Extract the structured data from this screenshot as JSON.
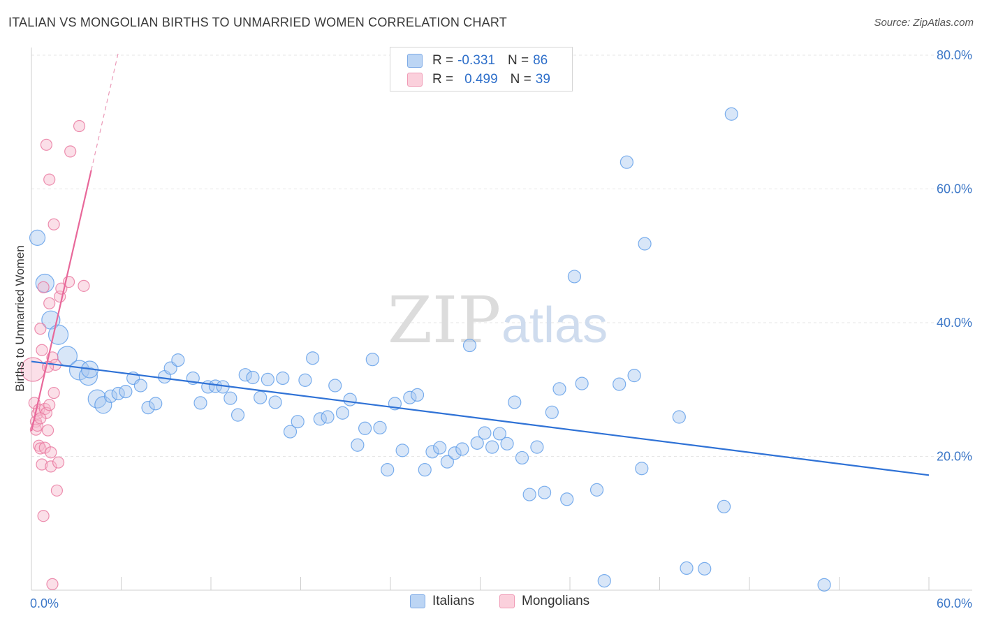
{
  "header": {
    "title": "ITALIAN VS MONGOLIAN BIRTHS TO UNMARRIED WOMEN CORRELATION CHART",
    "source": "Source: ZipAtlas.com"
  },
  "watermark": {
    "zip": "ZIP",
    "atlas": "atlas"
  },
  "legend": {
    "rows": [
      {
        "r_label": "R =",
        "r_value": "-0.331",
        "n_label": "N =",
        "n_value": "86",
        "color": "#a9c8f0"
      },
      {
        "r_label": "R =",
        "r_value": "0.499",
        "n_label": "N =",
        "n_value": "39",
        "color": "#f6b8cb"
      }
    ]
  },
  "bottom_legend": {
    "italians": "Italians",
    "mongolians": "Mongolians"
  },
  "chart_data": {
    "type": "scatter",
    "ylabel": "Births to Unmarried Women",
    "xlim": [
      0,
      60
    ],
    "ylim": [
      0,
      80
    ],
    "x_tick_labels": [
      {
        "value": 0,
        "label": "0.0%"
      },
      {
        "value": 60,
        "label": "60.0%"
      }
    ],
    "y_tick_labels": [
      {
        "value": 20,
        "label": "20.0%"
      },
      {
        "value": 40,
        "label": "40.0%"
      },
      {
        "value": 60,
        "label": "60.0%"
      },
      {
        "value": 80,
        "label": "80.0%"
      }
    ],
    "grid": true,
    "colors": {
      "italians": "#5b9be8",
      "italians_fill": "#a9c8f0",
      "mongolians": "#e8749c",
      "mongolians_fill": "#f6b8cb"
    },
    "series": [
      {
        "name": "Italians",
        "trend": {
          "x": [
            0,
            60
          ],
          "y": [
            34.2,
            17.2
          ]
        },
        "points": [
          [
            0.4,
            52.7
          ],
          [
            0.9,
            45.9
          ],
          [
            1.3,
            40.4
          ],
          [
            1.8,
            38.2
          ],
          [
            2.4,
            35.0
          ],
          [
            3.2,
            32.9
          ],
          [
            3.8,
            32.0
          ],
          [
            3.9,
            33.0
          ],
          [
            4.4,
            28.6
          ],
          [
            4.8,
            27.7
          ],
          [
            5.3,
            29.0
          ],
          [
            5.8,
            29.4
          ],
          [
            6.3,
            29.7
          ],
          [
            6.8,
            31.7
          ],
          [
            7.3,
            30.6
          ],
          [
            7.8,
            27.3
          ],
          [
            8.3,
            27.9
          ],
          [
            8.9,
            31.9
          ],
          [
            9.3,
            33.2
          ],
          [
            9.8,
            34.4
          ],
          [
            10.8,
            31.7
          ],
          [
            11.3,
            28.0
          ],
          [
            11.8,
            30.4
          ],
          [
            12.3,
            30.5
          ],
          [
            12.8,
            30.4
          ],
          [
            13.3,
            28.7
          ],
          [
            13.8,
            26.2
          ],
          [
            14.3,
            32.2
          ],
          [
            14.8,
            31.8
          ],
          [
            15.3,
            28.8
          ],
          [
            15.8,
            31.5
          ],
          [
            16.3,
            28.1
          ],
          [
            16.8,
            31.7
          ],
          [
            17.3,
            23.7
          ],
          [
            17.8,
            25.2
          ],
          [
            18.3,
            31.4
          ],
          [
            18.8,
            34.7
          ],
          [
            19.3,
            25.6
          ],
          [
            19.8,
            25.9
          ],
          [
            20.3,
            30.6
          ],
          [
            20.8,
            26.5
          ],
          [
            21.3,
            28.5
          ],
          [
            21.8,
            21.7
          ],
          [
            22.3,
            24.2
          ],
          [
            22.8,
            34.5
          ],
          [
            23.3,
            24.3
          ],
          [
            23.8,
            18.0
          ],
          [
            24.3,
            27.9
          ],
          [
            24.8,
            20.9
          ],
          [
            25.3,
            28.8
          ],
          [
            25.8,
            29.2
          ],
          [
            26.3,
            18.0
          ],
          [
            26.8,
            20.7
          ],
          [
            27.3,
            21.3
          ],
          [
            27.8,
            19.2
          ],
          [
            28.3,
            20.5
          ],
          [
            28.8,
            21.1
          ],
          [
            29.3,
            36.6
          ],
          [
            29.8,
            22.0
          ],
          [
            30.3,
            23.5
          ],
          [
            30.8,
            21.4
          ],
          [
            31.3,
            23.4
          ],
          [
            31.8,
            21.9
          ],
          [
            32.3,
            28.1
          ],
          [
            32.8,
            19.8
          ],
          [
            33.3,
            14.3
          ],
          [
            33.8,
            21.4
          ],
          [
            34.3,
            14.6
          ],
          [
            34.8,
            26.6
          ],
          [
            35.3,
            30.1
          ],
          [
            35.8,
            13.6
          ],
          [
            36.3,
            46.9
          ],
          [
            36.8,
            30.9
          ],
          [
            37.8,
            15.0
          ],
          [
            38.3,
            1.4
          ],
          [
            39.3,
            30.8
          ],
          [
            39.8,
            64.0
          ],
          [
            40.3,
            32.1
          ],
          [
            40.8,
            18.2
          ],
          [
            41.0,
            51.8
          ],
          [
            43.3,
            25.9
          ],
          [
            43.8,
            3.3
          ],
          [
            45.0,
            3.2
          ],
          [
            46.3,
            12.5
          ],
          [
            46.8,
            71.2
          ],
          [
            53.0,
            0.8
          ]
        ]
      },
      {
        "name": "Mongolians",
        "trend": {
          "x": [
            0,
            4
          ],
          "y": [
            23.8,
            62.8
          ]
        },
        "trend_extension": {
          "x": [
            4,
            5.8
          ],
          "y": [
            62.8,
            80.3
          ]
        },
        "points": [
          [
            0.1,
            33.0
          ],
          [
            0.2,
            28.0
          ],
          [
            0.3,
            25.2
          ],
          [
            0.3,
            24.0
          ],
          [
            0.4,
            26.4
          ],
          [
            0.5,
            27.0
          ],
          [
            0.5,
            21.6
          ],
          [
            0.6,
            21.2
          ],
          [
            0.6,
            39.1
          ],
          [
            0.7,
            18.8
          ],
          [
            0.7,
            35.9
          ],
          [
            0.8,
            45.3
          ],
          [
            0.8,
            11.1
          ],
          [
            0.9,
            21.3
          ],
          [
            0.9,
            27.1
          ],
          [
            1.0,
            66.6
          ],
          [
            1.0,
            26.5
          ],
          [
            1.1,
            23.9
          ],
          [
            1.2,
            61.4
          ],
          [
            1.2,
            42.9
          ],
          [
            1.3,
            20.6
          ],
          [
            1.3,
            18.5
          ],
          [
            1.4,
            34.8
          ],
          [
            1.4,
            0.9
          ],
          [
            1.5,
            54.7
          ],
          [
            1.5,
            29.5
          ],
          [
            1.6,
            33.7
          ],
          [
            1.7,
            14.9
          ],
          [
            1.8,
            19.1
          ],
          [
            1.9,
            43.9
          ],
          [
            2.0,
            45.1
          ],
          [
            2.5,
            46.1
          ],
          [
            2.6,
            65.6
          ],
          [
            3.2,
            69.4
          ],
          [
            3.5,
            45.5
          ],
          [
            0.4,
            24.6
          ],
          [
            0.6,
            25.7
          ],
          [
            1.1,
            33.4
          ],
          [
            1.2,
            27.7
          ]
        ]
      }
    ]
  }
}
